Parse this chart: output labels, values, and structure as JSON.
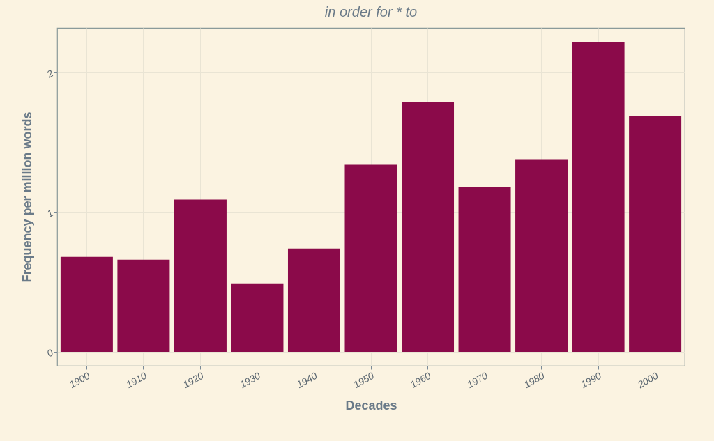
{
  "chart_data": {
    "type": "bar",
    "title": "in order for * to",
    "xlabel": "Decades",
    "ylabel": "Frequency per million words",
    "categories": [
      "1900",
      "1910",
      "1920",
      "1930",
      "1940",
      "1950",
      "1960",
      "1970",
      "1980",
      "1990",
      "2000"
    ],
    "values": [
      0.68,
      0.66,
      1.09,
      0.49,
      0.74,
      1.34,
      1.79,
      1.18,
      1.38,
      2.22,
      1.69
    ],
    "color": "#8b0a4a",
    "ylim": [
      -0.1,
      2.32
    ],
    "yticks": [
      0,
      1,
      2
    ],
    "grid": true
  }
}
